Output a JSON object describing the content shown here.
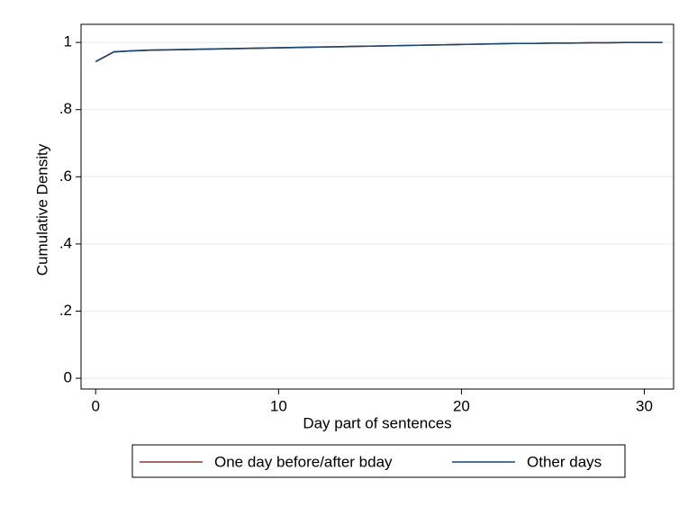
{
  "chart_data": {
    "type": "line",
    "xlabel": "Day part of sentences",
    "ylabel": "Cumulative Density",
    "xlim": [
      -0.8,
      31.6
    ],
    "ylim": [
      -0.032,
      1.054
    ],
    "xticks": [
      0,
      10,
      20,
      30
    ],
    "yticks": [
      0,
      {
        "value": 0.2,
        "label": ".2"
      },
      {
        "value": 0.4,
        "label": ".4"
      },
      {
        "value": 0.6,
        "label": ".6"
      },
      {
        "value": 0.8,
        "label": ".8"
      },
      1
    ],
    "grid": true,
    "legend": "bottom",
    "series": [
      {
        "name": "One day before/after bday",
        "color": "#90353b",
        "x": [
          0,
          1,
          2,
          3,
          4,
          5,
          6,
          7,
          8,
          9,
          10,
          11,
          12,
          13,
          14,
          15,
          16,
          17,
          18,
          19,
          20,
          21,
          22,
          23,
          24,
          25,
          26,
          27,
          28,
          29
        ],
        "values": [
          0.943,
          0.972,
          0.975,
          0.977,
          0.978,
          0.979,
          0.98,
          0.981,
          0.982,
          0.983,
          0.984,
          0.985,
          0.986,
          0.987,
          0.988,
          0.989,
          0.99,
          0.991,
          0.992,
          0.993,
          0.994,
          0.995,
          0.996,
          0.997,
          0.997,
          0.998,
          0.998,
          0.999,
          0.999,
          1.0
        ]
      },
      {
        "name": "Other days",
        "color": "#1a476f",
        "x": [
          0,
          1,
          2,
          3,
          4,
          5,
          6,
          7,
          8,
          9,
          10,
          11,
          12,
          13,
          14,
          15,
          16,
          17,
          18,
          19,
          20,
          21,
          22,
          23,
          24,
          25,
          26,
          27,
          28,
          29,
          30,
          31
        ],
        "values": [
          0.943,
          0.972,
          0.975,
          0.977,
          0.978,
          0.979,
          0.98,
          0.981,
          0.982,
          0.983,
          0.984,
          0.985,
          0.986,
          0.987,
          0.988,
          0.989,
          0.99,
          0.991,
          0.992,
          0.993,
          0.994,
          0.995,
          0.996,
          0.997,
          0.997,
          0.998,
          0.998,
          0.999,
          0.999,
          1.0,
          1.0,
          1.0
        ]
      }
    ]
  }
}
